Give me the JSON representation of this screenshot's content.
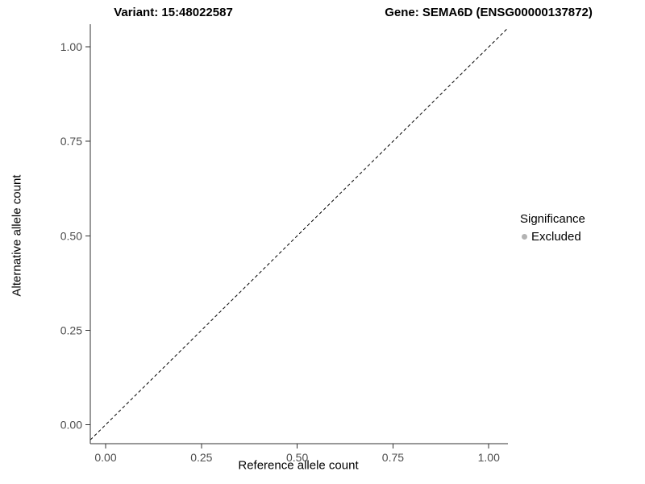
{
  "header": {
    "variant_title": "Variant: 15:48022587",
    "gene_title": "Gene: SEMA6D (ENSG00000137872)"
  },
  "chart_data": {
    "type": "scatter",
    "title": "Variant: 15:48022587   Gene: SEMA6D (ENSG00000137872)",
    "xlabel": "Reference allele count",
    "ylabel": "Alternative allele count",
    "xlim": [
      -0.04,
      1.05
    ],
    "ylim": [
      -0.05,
      1.06
    ],
    "xticks": {
      "values": [
        0,
        0.25,
        0.5,
        0.75,
        1
      ],
      "labels": [
        "0.00",
        "0.25",
        "0.50",
        "0.75",
        "1.00"
      ]
    },
    "yticks": {
      "values": [
        0,
        0.25,
        0.5,
        0.75,
        1
      ],
      "labels": [
        "0.00",
        "0.25",
        "0.50",
        "0.75",
        "1.00"
      ]
    },
    "grid": false,
    "points": [],
    "reference_line": {
      "type": "identity",
      "from": [
        0,
        0
      ],
      "to": [
        1,
        1
      ],
      "style": "dashed",
      "color": "#000000"
    },
    "legend": {
      "title": "Significance",
      "position": "right",
      "entries": [
        {
          "label": "Excluded",
          "color": "#b3b3b3",
          "marker": "circle"
        }
      ]
    },
    "colors": {
      "axis_text": "#4d4d4d",
      "axis_line": "#333333",
      "title": "#000000"
    }
  }
}
